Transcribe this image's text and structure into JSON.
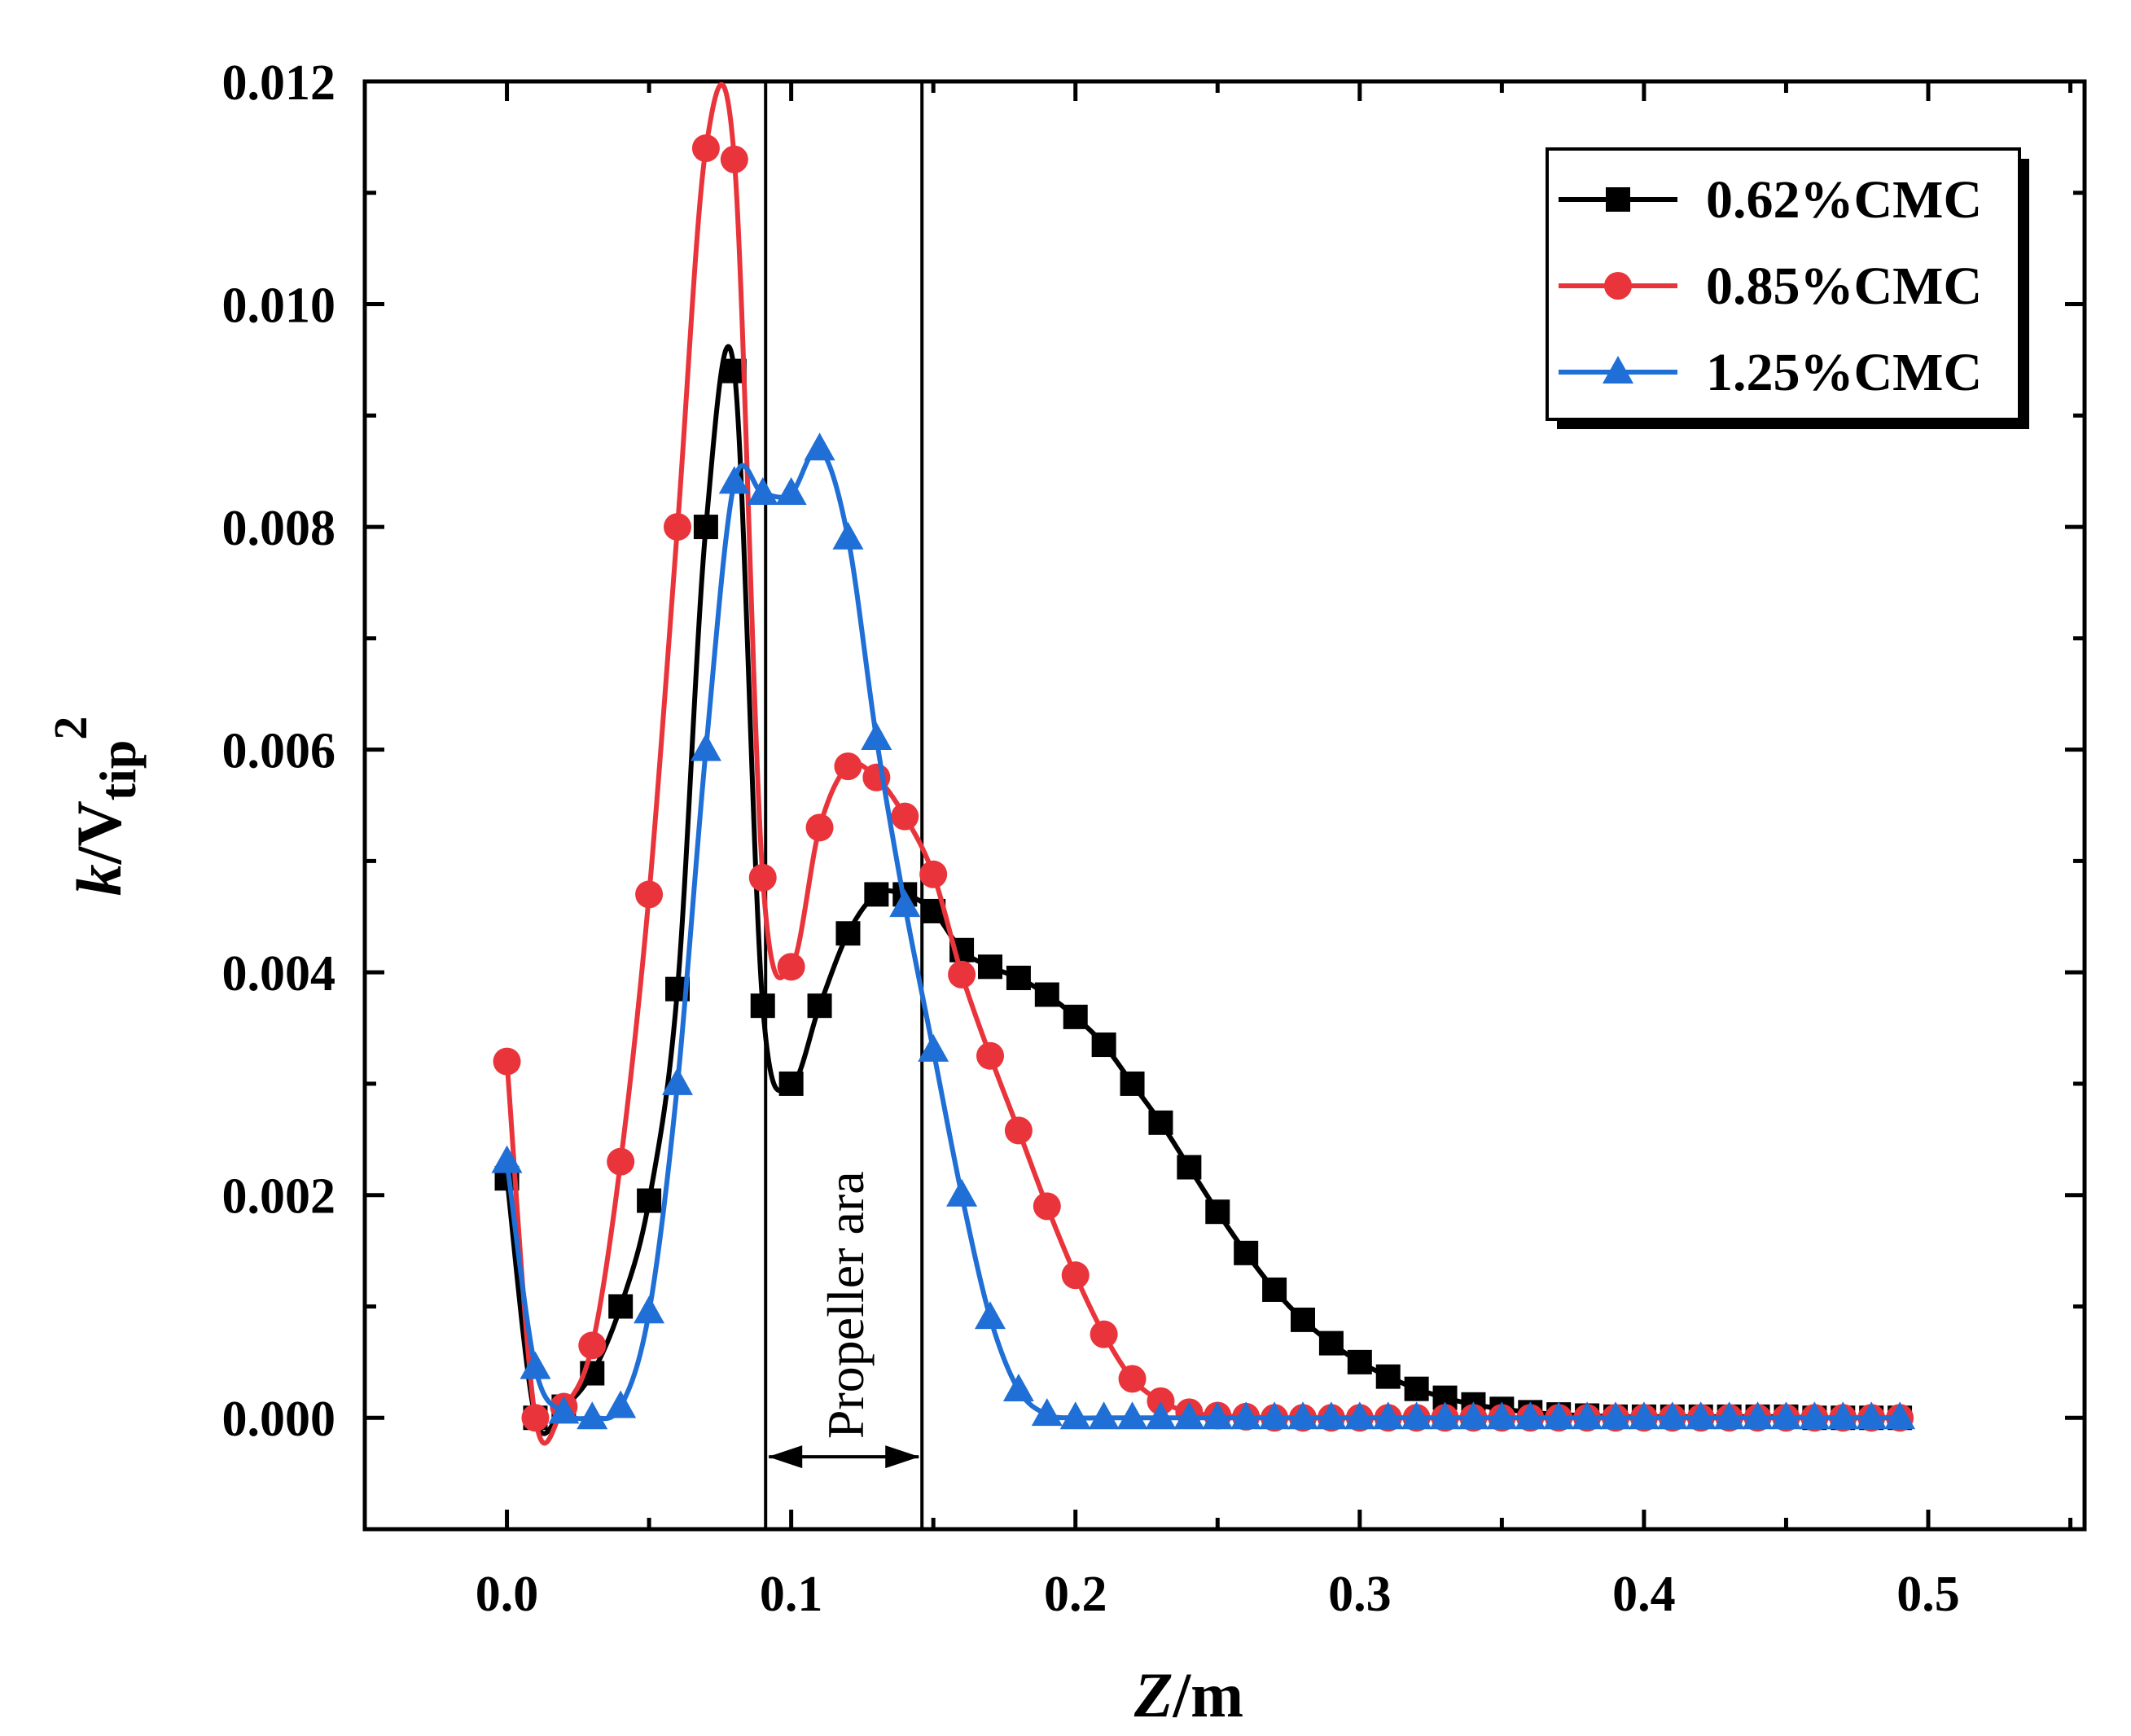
{
  "chart_data": {
    "type": "line",
    "title": "",
    "xlabel_main": "Z",
    "xlabel_unit": "/m",
    "ylabel_k": "k",
    "ylabel_slash_v": "/V",
    "ylabel_sub": "tip",
    "ylabel_sup": "2",
    "xlim": [
      -0.05,
      0.555
    ],
    "ylim": [
      -0.001,
      0.012
    ],
    "x_ticks": [
      0.0,
      0.1,
      0.2,
      0.3,
      0.4,
      0.5
    ],
    "x_tick_labels": [
      "0.0",
      "0.1",
      "0.2",
      "0.3",
      "0.4",
      "0.5"
    ],
    "y_ticks": [
      0.0,
      0.002,
      0.004,
      0.006,
      0.008,
      0.01,
      0.012
    ],
    "y_tick_labels": [
      "0.000",
      "0.002",
      "0.004",
      "0.006",
      "0.008",
      "0.010",
      "0.012"
    ],
    "x": [
      0.0,
      0.01,
      0.02,
      0.03,
      0.04,
      0.05,
      0.06,
      0.07,
      0.08,
      0.09,
      0.1,
      0.11,
      0.12,
      0.13,
      0.14,
      0.15,
      0.16,
      0.17,
      0.18,
      0.19,
      0.2,
      0.21,
      0.22,
      0.23,
      0.24,
      0.25,
      0.26,
      0.27,
      0.28,
      0.29,
      0.3,
      0.31,
      0.32,
      0.33,
      0.34,
      0.35,
      0.36,
      0.37,
      0.38,
      0.39,
      0.4,
      0.41,
      0.42,
      0.43,
      0.44,
      0.45,
      0.46,
      0.47,
      0.48,
      0.49
    ],
    "series": [
      {
        "name": "0.62%CMC",
        "color": "#000000",
        "marker": "square",
        "values": [
          0.00215,
          0.0,
          0.0001,
          0.0004,
          0.001,
          0.00195,
          0.00385,
          0.008,
          0.0094,
          0.0037,
          0.003,
          0.0037,
          0.00435,
          0.0047,
          0.0047,
          0.00455,
          0.0042,
          0.00405,
          0.00395,
          0.0038,
          0.0036,
          0.00335,
          0.003,
          0.00265,
          0.00225,
          0.00185,
          0.00148,
          0.00115,
          0.00088,
          0.00067,
          0.0005,
          0.00037,
          0.00026,
          0.00018,
          0.00012,
          8e-05,
          5e-05,
          3e-05,
          2e-05,
          1e-05,
          1e-05,
          1e-05,
          1e-05,
          1e-05,
          1e-05,
          1e-05,
          0.0,
          0.0,
          0.0,
          0.0
        ]
      },
      {
        "name": "0.85%CMC",
        "color": "#e8343a",
        "marker": "circle",
        "values": [
          0.0032,
          0.0,
          0.0001,
          0.00065,
          0.0023,
          0.0047,
          0.008,
          0.0114,
          0.0113,
          0.00485,
          0.00405,
          0.0053,
          0.00585,
          0.00575,
          0.0054,
          0.00488,
          0.00398,
          0.00325,
          0.00258,
          0.0019,
          0.00128,
          0.00075,
          0.00035,
          0.00015,
          5e-05,
          2e-05,
          1e-05,
          0.0,
          0.0,
          0.0,
          0.0,
          0.0,
          0.0,
          0.0,
          0.0,
          0.0,
          0.0,
          0.0,
          0.0,
          0.0,
          0.0,
          0.0,
          0.0,
          0.0,
          0.0,
          0.0,
          0.0,
          0.0,
          0.0,
          0.0
        ]
      },
      {
        "name": "1.25%CMC",
        "color": "#1f6fd6",
        "marker": "triangle",
        "values": [
          0.0023,
          0.00045,
          5e-05,
          0.0,
          0.0001,
          0.00095,
          0.003,
          0.006,
          0.0084,
          0.0083,
          0.0083,
          0.0087,
          0.0079,
          0.0061,
          0.0046,
          0.0033,
          0.002,
          0.0009,
          0.00025,
          3e-05,
          0.0,
          0.0,
          0.0,
          0.0,
          0.0,
          0.0,
          0.0,
          0.0,
          0.0,
          0.0,
          0.0,
          0.0,
          0.0,
          0.0,
          0.0,
          0.0,
          0.0,
          0.0,
          0.0,
          0.0,
          0.0,
          0.0,
          0.0,
          0.0,
          0.0,
          0.0,
          0.0,
          0.0,
          0.0,
          0.0
        ]
      }
    ],
    "annotation": {
      "label": "Propeller ara",
      "x_start": 0.091,
      "x_end": 0.146,
      "arrow_y": -0.00035
    },
    "legend_position": "top-right",
    "grid": false
  }
}
